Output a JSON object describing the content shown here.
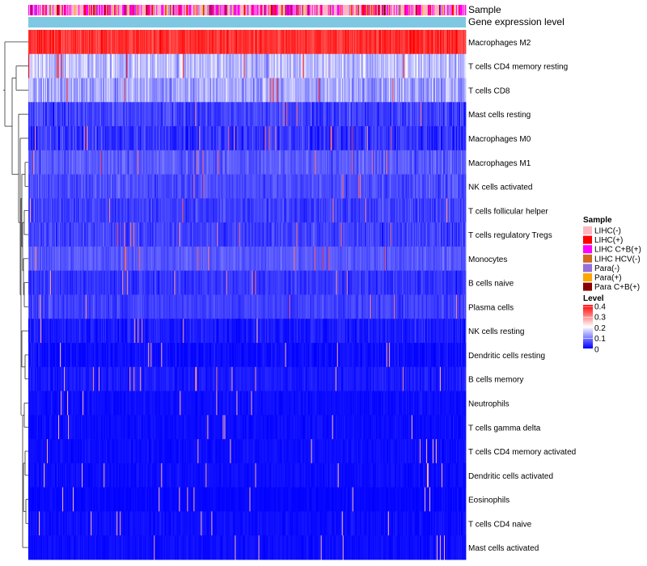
{
  "chart_data": {
    "type": "heatmap",
    "title": "",
    "annotation_tracks": [
      "Sample",
      "Gene expression level"
    ],
    "rows": [
      {
        "name": "Macrophages M2",
        "mean": 0.36,
        "spread": 0.06
      },
      {
        "name": "T cells CD4 memory resting",
        "mean": 0.15,
        "spread": 0.09
      },
      {
        "name": "T cells CD8",
        "mean": 0.13,
        "spread": 0.09
      },
      {
        "name": "Mast cells resting",
        "mean": 0.05,
        "spread": 0.06
      },
      {
        "name": "Macrophages M0",
        "mean": 0.04,
        "spread": 0.07
      },
      {
        "name": "Macrophages M1",
        "mean": 0.07,
        "spread": 0.05
      },
      {
        "name": "NK cells activated",
        "mean": 0.06,
        "spread": 0.05
      },
      {
        "name": "T cells follicular helper",
        "mean": 0.05,
        "spread": 0.05
      },
      {
        "name": "T cells regulatory  Tregs",
        "mean": 0.05,
        "spread": 0.05
      },
      {
        "name": "Monocytes",
        "mean": 0.07,
        "spread": 0.04
      },
      {
        "name": "B cells naive",
        "mean": 0.04,
        "spread": 0.04
      },
      {
        "name": "Plasma cells",
        "mean": 0.05,
        "spread": 0.04
      },
      {
        "name": "NK cells resting",
        "mean": 0.02,
        "spread": 0.04
      },
      {
        "name": "Dendritic cells resting",
        "mean": 0.01,
        "spread": 0.03
      },
      {
        "name": "B cells memory",
        "mean": 0.02,
        "spread": 0.03
      },
      {
        "name": "Neutrophils",
        "mean": 0.01,
        "spread": 0.02
      },
      {
        "name": "T cells gamma delta",
        "mean": 0.01,
        "spread": 0.02
      },
      {
        "name": "T cells CD4 memory activated",
        "mean": 0.01,
        "spread": 0.02
      },
      {
        "name": "Dendritic cells activated",
        "mean": 0.01,
        "spread": 0.02
      },
      {
        "name": "Eosinophils",
        "mean": 0.005,
        "spread": 0.015
      },
      {
        "name": "T cells CD4 naive",
        "mean": 0.01,
        "spread": 0.02
      },
      {
        "name": "Mast cells activated",
        "mean": 0.01,
        "spread": 0.02
      }
    ],
    "n_samples": 540,
    "legend": {
      "sample": {
        "title": "Sample",
        "entries": [
          {
            "label": "LIHC(-)",
            "color": "#ffb6c1"
          },
          {
            "label": "LIHC(+)",
            "color": "#ff0000"
          },
          {
            "label": "LIHC C+B(+)",
            "color": "#ff00ff"
          },
          {
            "label": "LIHC HCV(-)",
            "color": "#d2691e"
          },
          {
            "label": "Para(-)",
            "color": "#9370db"
          },
          {
            "label": "Para(+)",
            "color": "#ffa500"
          },
          {
            "label": "Para C+B(+)",
            "color": "#8b0000"
          }
        ]
      },
      "level": {
        "title": "Level",
        "ticks": [
          "0.4",
          "0.3",
          "0.2",
          "0.1",
          "0"
        ],
        "range": [
          0,
          0.4
        ],
        "colors": [
          "#0000ff",
          "#ffffff",
          "#ff0000"
        ]
      }
    },
    "gene_expression_color": "#7ec8e3"
  }
}
